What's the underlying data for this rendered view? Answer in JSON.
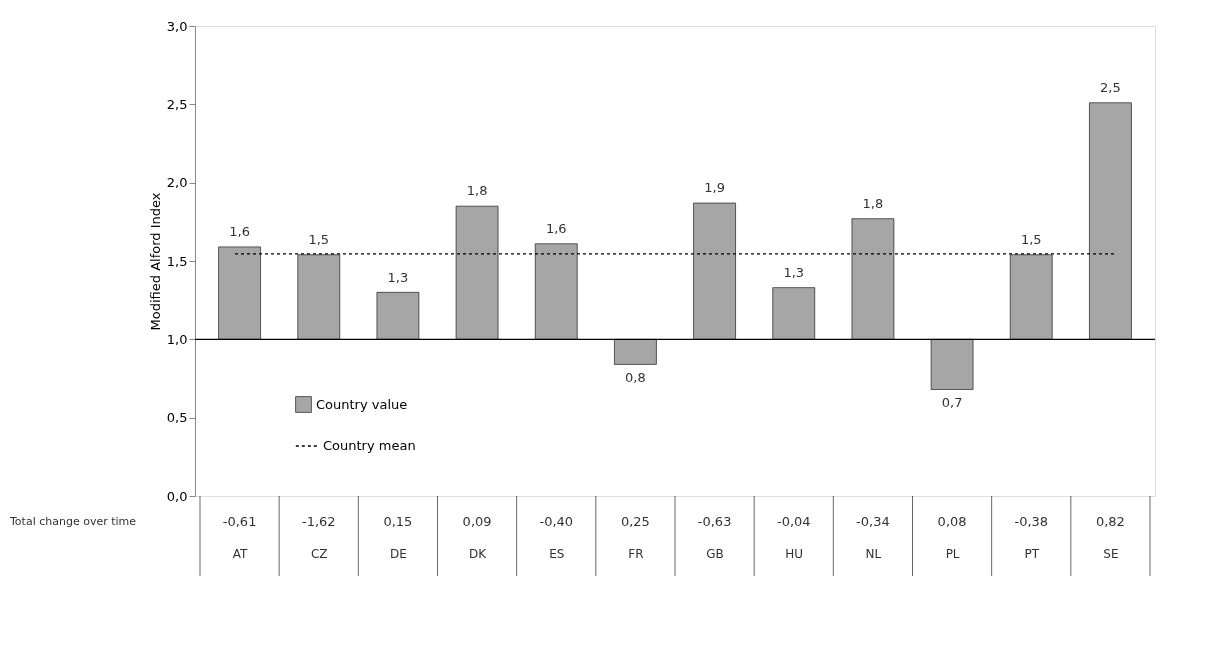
{
  "chart_data": {
    "type": "bar",
    "ylabel": "Modified Alford Index",
    "categories": [
      "AT",
      "CZ",
      "DE",
      "DK",
      "ES",
      "FR",
      "GB",
      "HU",
      "NL",
      "PL",
      "PT",
      "SE"
    ],
    "series": [
      {
        "name": "Country value",
        "color": "#a6a6a6",
        "values": [
          0.59,
          0.54,
          0.3,
          0.85,
          0.61,
          -0.16,
          0.87,
          0.33,
          0.77,
          -0.32,
          0.54,
          1.51
        ],
        "base": [
          1,
          1,
          1,
          1,
          1,
          1,
          1,
          1,
          1,
          1,
          1,
          1
        ]
      }
    ],
    "value_labels": [
      "1,6",
      "1,5",
      "1,3",
      "1,8",
      "1,6",
      "0,8",
      "1,9",
      "1,3",
      "1,8",
      "0,7",
      "1,5",
      "2,5"
    ],
    "ylim": [
      0,
      3
    ],
    "yticks": [
      {
        "value": 0,
        "label": "0,0"
      },
      {
        "value": 0.5,
        "label": "0,5"
      },
      {
        "value": 1,
        "label": "1,0"
      },
      {
        "value": 1.5,
        "label": "1,5"
      },
      {
        "value": 2,
        "label": "2,0"
      },
      {
        "value": 2.5,
        "label": "2,5"
      },
      {
        "value": 3,
        "label": "3,0"
      }
    ],
    "ref_lines": [
      {
        "axis": "y",
        "value": 1,
        "line_style": "solid",
        "color": "#000000"
      },
      {
        "axis": "y",
        "value": 1.545,
        "label": "Country mean",
        "line_style": "dotted",
        "color": "#000000"
      }
    ],
    "annotations": [
      "Total change over time",
      "-0,61",
      "-1,62",
      "0,15",
      "0,09",
      "-0,40",
      "0,25",
      "-0,63",
      "-0,04",
      "-0,34",
      "0,08",
      "-0,38",
      "0,82"
    ],
    "legend": "bottom left",
    "grid": false
  }
}
